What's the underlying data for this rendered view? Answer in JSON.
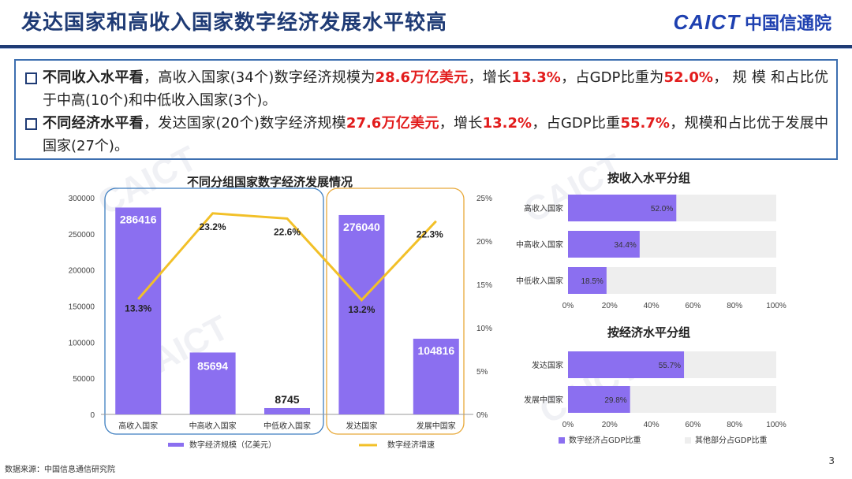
{
  "header": {
    "title": "发达国家和高收入国家数字经济发展水平较高",
    "logo_en": "CAICT",
    "logo_cn": "中国信通院"
  },
  "summary": {
    "bullets": [
      {
        "segments": [
          {
            "t": "不同收入水平看",
            "s": "bold"
          },
          {
            "t": "，高收入国家(34个)数字经济规模为",
            "s": ""
          },
          {
            "t": "28.6万亿美元",
            "s": "red"
          },
          {
            "t": "，增长",
            "s": ""
          },
          {
            "t": "13.3%",
            "s": "red"
          },
          {
            "t": "，占GDP比重为",
            "s": ""
          },
          {
            "t": "52.0%",
            "s": "red"
          },
          {
            "t": "， 规 模 和占比优于中高(10个)和中低收入国家(3个)。",
            "s": ""
          }
        ]
      },
      {
        "segments": [
          {
            "t": "不同经济水平看",
            "s": "bold"
          },
          {
            "t": "，发达国家(20个)数字经济规模",
            "s": ""
          },
          {
            "t": "27.6万亿美元",
            "s": "red"
          },
          {
            "t": "，增长",
            "s": ""
          },
          {
            "t": "13.2%",
            "s": "red"
          },
          {
            "t": "，占GDP比重",
            "s": ""
          },
          {
            "t": "55.7%",
            "s": "red"
          },
          {
            "t": "，规模和占比优于发展中国家(27个)。",
            "s": ""
          }
        ]
      }
    ]
  },
  "chart_data": [
    {
      "type": "bar",
      "title": "不同分组国家数字经济发展情况",
      "categories": [
        "高收入国家",
        "中高收入国家",
        "中低收入国家",
        "发达国家",
        "发展中国家"
      ],
      "series": [
        {
          "name": "数字经济规模（亿美元）",
          "type": "bar",
          "axis": "left",
          "values": [
            286416,
            85694,
            8745,
            276040,
            104816
          ],
          "labels": [
            "286416",
            "85694",
            "8745",
            "276040",
            "104816"
          ]
        },
        {
          "name": "数字经济增速",
          "type": "line",
          "axis": "right",
          "values": [
            13.3,
            23.2,
            22.6,
            13.2,
            22.3
          ],
          "labels": [
            "13.3%",
            "23.2%",
            "22.6%",
            "13.2%",
            "22.3%"
          ]
        }
      ],
      "y_left": {
        "min": 0,
        "max": 300000,
        "ticks": [
          "0",
          "50000",
          "100000",
          "150000",
          "200000",
          "250000",
          "300000"
        ]
      },
      "y_right": {
        "min": 0,
        "max": 25,
        "ticks": [
          "0%",
          "5%",
          "10%",
          "15%",
          "20%",
          "25%"
        ]
      },
      "colors": {
        "bar": "#8b6ff0",
        "line": "#f2c028",
        "income_group_frame": "#3d7ec0",
        "economy_group_frame": "#e8a93a"
      }
    },
    {
      "type": "bar",
      "orientation": "horizontal",
      "stacked": true,
      "title": "按收入水平分组",
      "categories": [
        "高收入国家",
        "中高收入国家",
        "中低收入国家"
      ],
      "series": [
        {
          "name": "数字经济占GDP比重",
          "values": [
            52.0,
            34.4,
            18.5
          ],
          "labels": [
            "52.0%",
            "34.4%",
            "18.5%"
          ]
        },
        {
          "name": "其他部分占GDP比重",
          "values": [
            48.0,
            65.6,
            81.5
          ]
        }
      ],
      "x_ticks": [
        "0%",
        "20%",
        "40%",
        "60%",
        "80%",
        "100%"
      ],
      "xlim": [
        0,
        100
      ]
    },
    {
      "type": "bar",
      "orientation": "horizontal",
      "stacked": true,
      "title": "按经济水平分组",
      "categories": [
        "发达国家",
        "发展中国家"
      ],
      "series": [
        {
          "name": "数字经济占GDP比重",
          "values": [
            55.7,
            29.8
          ],
          "labels": [
            "55.7%",
            "29.8%"
          ]
        },
        {
          "name": "其他部分占GDP比重",
          "values": [
            44.3,
            70.2
          ]
        }
      ],
      "x_ticks": [
        "0%",
        "20%",
        "40%",
        "60%",
        "80%",
        "100%"
      ],
      "xlim": [
        0,
        100
      ]
    }
  ],
  "legend": {
    "left": {
      "bar": "数字经济规模（亿美元）",
      "line": "数字经济增速"
    },
    "right": {
      "primary": "数字经济占GDP比重",
      "other": "其他部分占GDP比重"
    }
  },
  "colors": {
    "bar": "#8b6ff0",
    "bar_light": "#eeeeee",
    "line": "#f2c028",
    "title": "#1f3b75",
    "accent_red": "#e21c1c"
  },
  "footer": {
    "source": "数据来源：中国信息通信研究院",
    "page_number": "3"
  }
}
